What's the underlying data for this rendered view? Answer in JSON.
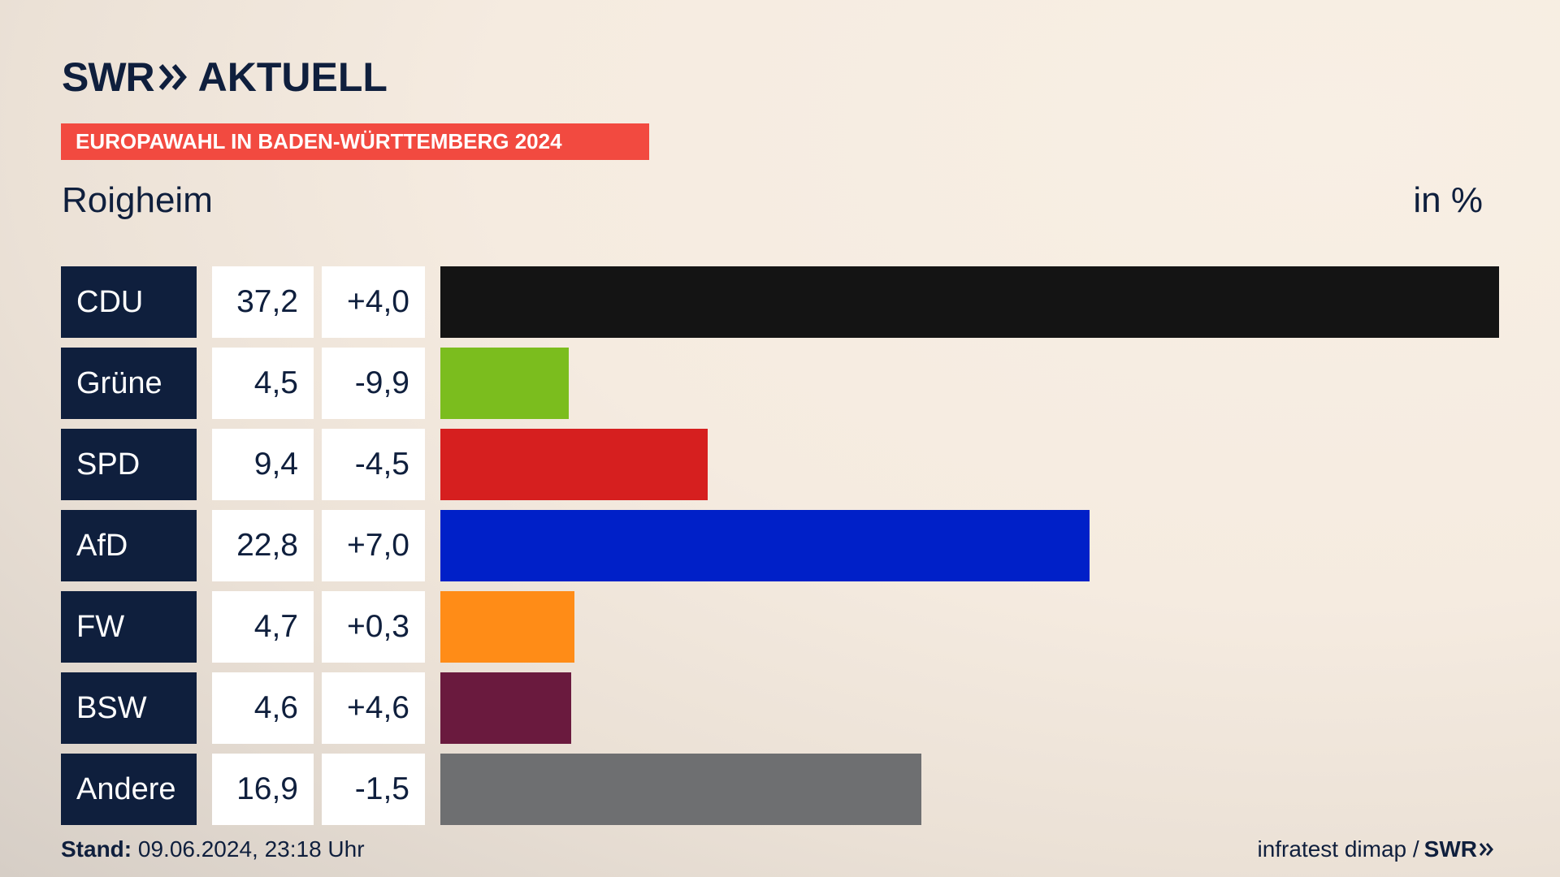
{
  "header": {
    "logo_swr": "SWR",
    "logo_aktuell": "AKTUELL",
    "banner": "EUROPAWAHL IN BADEN-WÜRTTEMBERG 2024",
    "location": "Roigheim",
    "unit": "in %"
  },
  "footer": {
    "stand_label": "Stand:",
    "stand_value": "09.06.2024, 23:18 Uhr",
    "source": "infratest dimap /",
    "source_swr": "SWR"
  },
  "colors": {
    "navy": "#0f1f3d",
    "banner": "#f24a40"
  },
  "chart_data": {
    "type": "bar",
    "orientation": "horizontal",
    "title": "Roigheim",
    "unit": "in %",
    "categories": [
      "CDU",
      "Grüne",
      "SPD",
      "AfD",
      "FW",
      "BSW",
      "Andere"
    ],
    "values": [
      37.2,
      4.5,
      9.4,
      22.8,
      4.7,
      4.6,
      16.9
    ],
    "value_labels": [
      "37,2",
      "4,5",
      "9,4",
      "22,8",
      "4,7",
      "4,6",
      "16,9"
    ],
    "change_labels": [
      "+4,0",
      "-9,9",
      "-4,5",
      "+7,0",
      "+0,3",
      "+4,6",
      "-1,5"
    ],
    "colors": [
      "#141414",
      "#7bbd1e",
      "#d61f1f",
      "#0020c8",
      "#ff8c17",
      "#6a1a3e",
      "#6e6f71"
    ],
    "xlim": [
      0,
      37.2
    ]
  }
}
